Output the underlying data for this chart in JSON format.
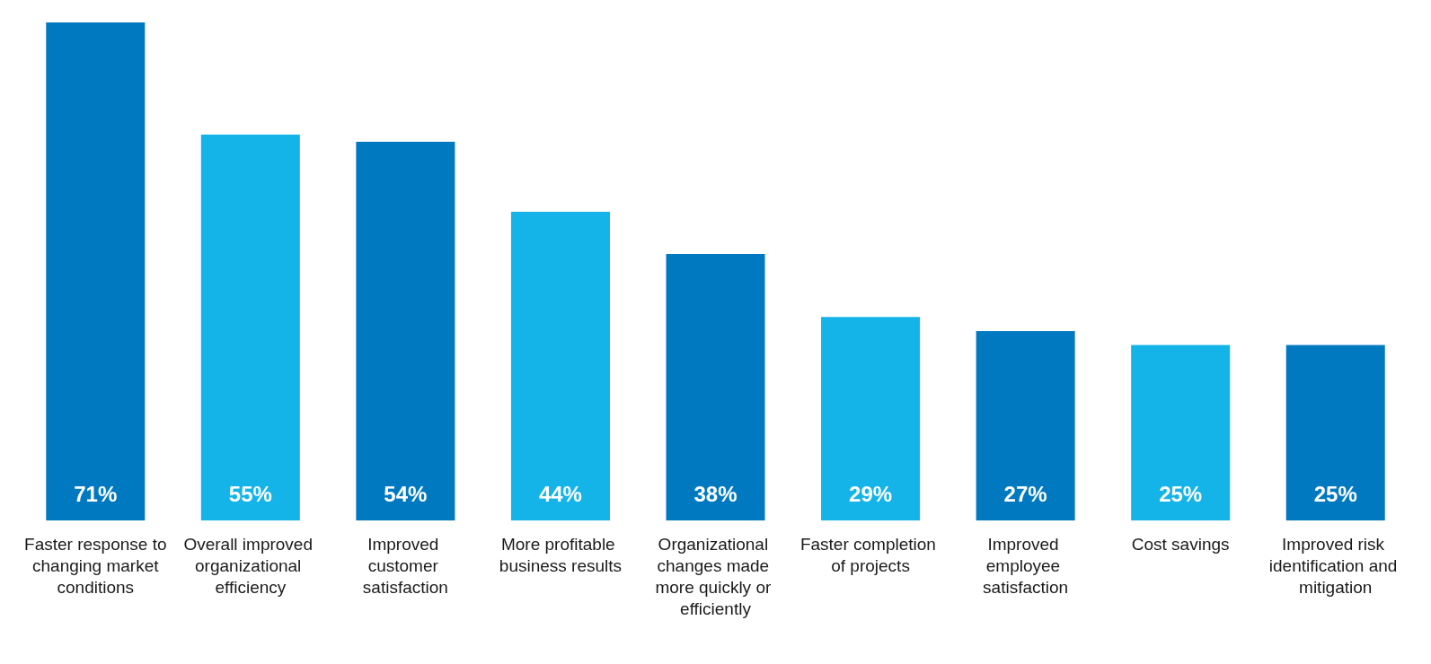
{
  "chart_data": {
    "type": "bar",
    "categories": [
      "Faster response to changing market conditions",
      "Overall improved organizational efficiency",
      "Improved customer satisfaction",
      "More profitable business results",
      "Organizational changes made more quickly or efficiently",
      "Faster completion of projects",
      "Improved employee satisfaction",
      "Cost savings",
      "Improved risk identification and mitigation"
    ],
    "values": [
      71,
      55,
      54,
      44,
      38,
      29,
      27,
      25,
      25
    ],
    "value_labels": [
      "71%",
      "55%",
      "54%",
      "44%",
      "38%",
      "29%",
      "27%",
      "25%",
      "25%"
    ],
    "colors": [
      "#0079c1",
      "#14b4e8",
      "#0079c1",
      "#14b4e8",
      "#0079c1",
      "#14b4e8",
      "#0079c1",
      "#14b4e8",
      "#0079c1"
    ]
  }
}
